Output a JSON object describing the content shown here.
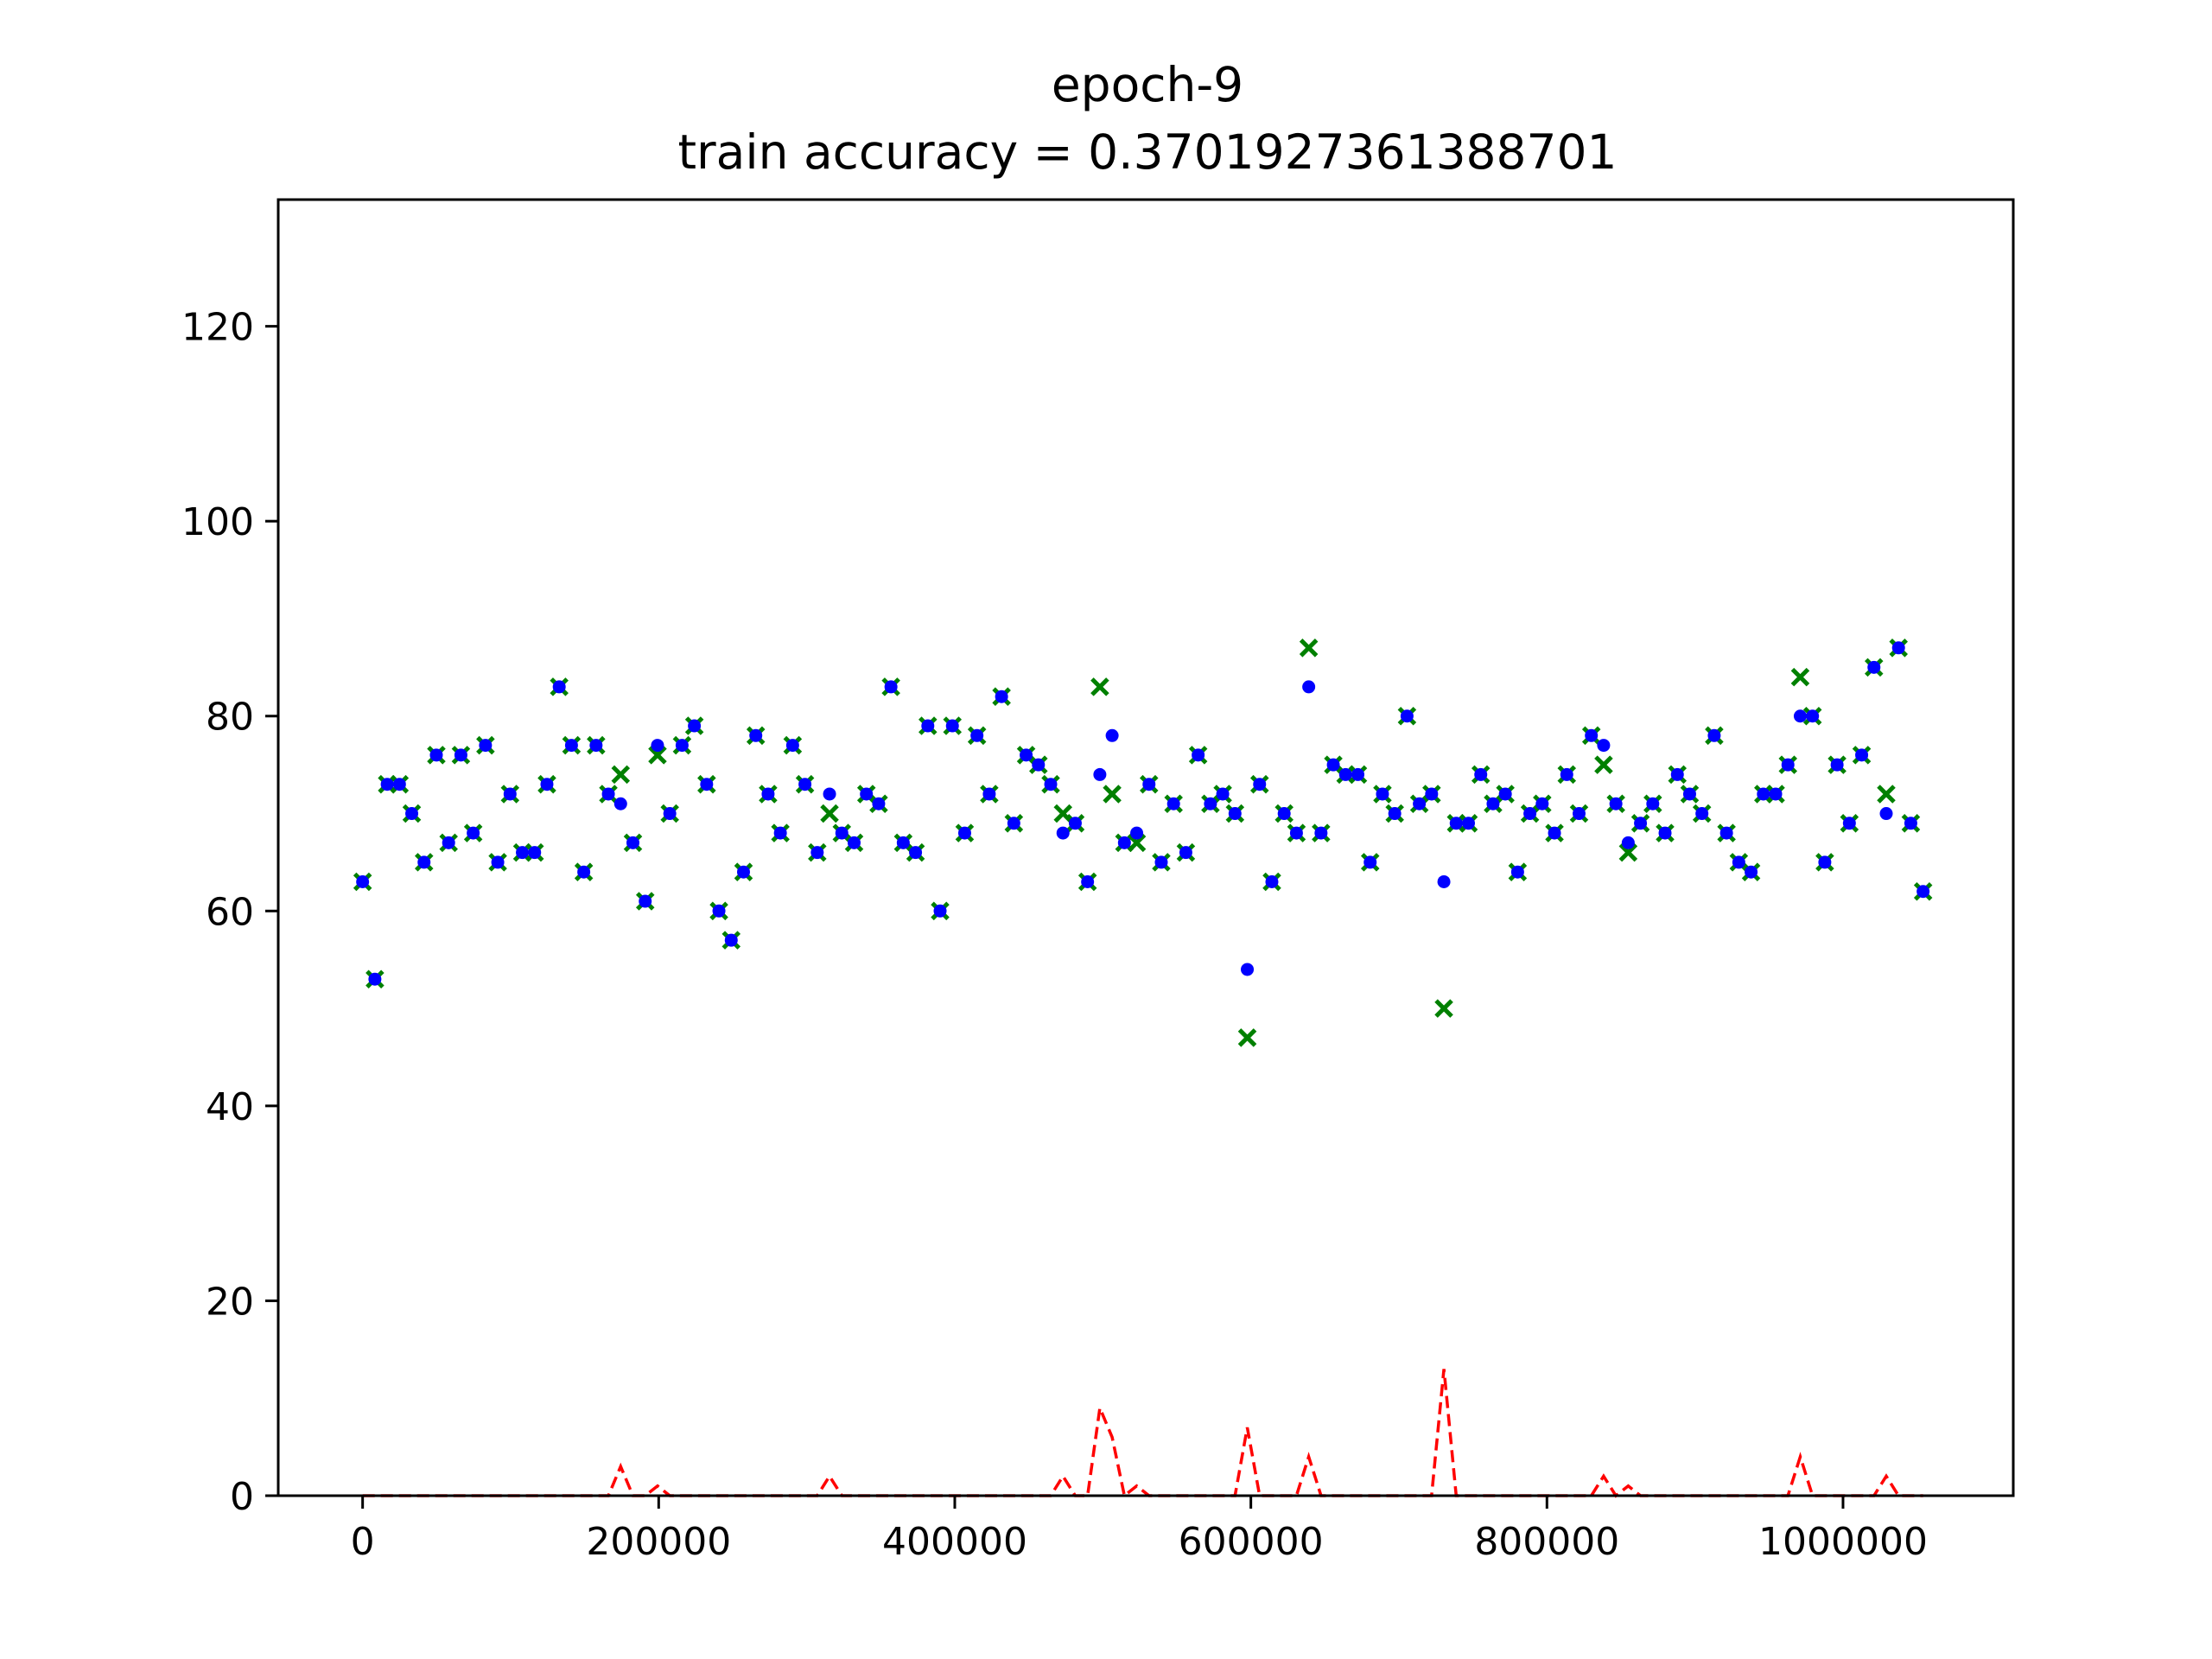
{
  "chart_data": {
    "type": "scatter",
    "title": "epoch-9",
    "subtitle": "train accuracy = 0.3701927361388701",
    "xlabel": "",
    "ylabel": "",
    "xlim": [
      -57000,
      1115000
    ],
    "ylim": [
      0,
      133
    ],
    "x_ticks": [
      0,
      200000,
      400000,
      600000,
      800000,
      1000000
    ],
    "x_tick_labels": [
      "0",
      "200000",
      "400000",
      "600000",
      "800000",
      "1000000"
    ],
    "y_ticks": [
      0,
      20,
      40,
      60,
      80,
      100,
      120
    ],
    "y_tick_labels": [
      "0",
      "20",
      "40",
      "60",
      "80",
      "100",
      "120"
    ],
    "grid": false,
    "colors": {
      "predicted": "#0000ff",
      "actual": "#008000",
      "error": "#ff0000"
    },
    "x": [
      0,
      8300,
      16600,
      24900,
      33200,
      41500,
      49800,
      58100,
      66400,
      74700,
      83000,
      91300,
      99600,
      107900,
      116200,
      124500,
      132800,
      141100,
      149400,
      157700,
      166000,
      174300,
      182600,
      190900,
      199200,
      207500,
      215800,
      224100,
      232400,
      240700,
      249000,
      257300,
      265600,
      273900,
      282200,
      290500,
      298800,
      307100,
      315400,
      323700,
      332000,
      340300,
      348600,
      356900,
      365200,
      373500,
      381800,
      390100,
      398400,
      406700,
      415000,
      423300,
      431600,
      439900,
      448200,
      456500,
      464800,
      473100,
      481400,
      489700,
      498000,
      506300,
      514600,
      522900,
      531200,
      539500,
      547800,
      556100,
      564400,
      572700,
      581000,
      589300,
      597600,
      605900,
      614200,
      622500,
      630800,
      639100,
      647400,
      655700,
      664000,
      672300,
      680600,
      688900,
      697200,
      705500,
      713800,
      722100,
      730400,
      738700,
      747000,
      755300,
      763600,
      771900,
      780200,
      788500,
      796800,
      805100,
      813400,
      821700,
      830000,
      838300,
      846600,
      854900,
      863200,
      871500,
      879800,
      888100,
      896400,
      904700,
      913000,
      921300,
      929600,
      937900,
      946200,
      954500,
      962800,
      971100,
      979400,
      987700,
      996000,
      1004300,
      1012600,
      1020900,
      1029200,
      1037500,
      1045800,
      1054100
    ],
    "series": [
      {
        "marker": "circle",
        "values": [
          63,
          53,
          73,
          73,
          70,
          65,
          76,
          67,
          76,
          68,
          77,
          65,
          72,
          66,
          66,
          73,
          83,
          77,
          64,
          77,
          72,
          71,
          67,
          61,
          77,
          70,
          77,
          79,
          73,
          60,
          57,
          64,
          78,
          72,
          68,
          77,
          73,
          66,
          72,
          68,
          67,
          72,
          71,
          83,
          67,
          66,
          79,
          60,
          79,
          68,
          78,
          72,
          82,
          69,
          76,
          75,
          73,
          68,
          69,
          63,
          74,
          78,
          67,
          68,
          73,
          65,
          71,
          66,
          76,
          71,
          72,
          70,
          54,
          73,
          63,
          70,
          68,
          83,
          68,
          75,
          74,
          74,
          65,
          72,
          70,
          80,
          71,
          72,
          63,
          69,
          69,
          74,
          71,
          72,
          64,
          70,
          71,
          68,
          74,
          70,
          78,
          77,
          71,
          67,
          69,
          71,
          68,
          74,
          72,
          70,
          78,
          68,
          65,
          64,
          72,
          72,
          75,
          80,
          80,
          65,
          75,
          69,
          76,
          85,
          70,
          87,
          69,
          62
        ]
      },
      {
        "marker": "x",
        "values": [
          63,
          53,
          73,
          73,
          70,
          65,
          76,
          67,
          76,
          68,
          77,
          65,
          72,
          66,
          66,
          73,
          83,
          77,
          64,
          77,
          72,
          74,
          67,
          61,
          76,
          70,
          77,
          79,
          73,
          60,
          57,
          64,
          78,
          72,
          68,
          77,
          73,
          66,
          70,
          68,
          67,
          72,
          71,
          83,
          67,
          66,
          79,
          60,
          79,
          68,
          78,
          72,
          82,
          69,
          76,
          75,
          73,
          70,
          69,
          63,
          83,
          72,
          67,
          67,
          73,
          65,
          71,
          66,
          76,
          71,
          72,
          70,
          47,
          73,
          63,
          70,
          68,
          87,
          68,
          75,
          74,
          74,
          65,
          72,
          70,
          80,
          71,
          72,
          50,
          69,
          69,
          74,
          71,
          72,
          64,
          70,
          71,
          68,
          74,
          70,
          78,
          75,
          71,
          66,
          69,
          71,
          68,
          74,
          72,
          70,
          78,
          68,
          65,
          64,
          72,
          72,
          75,
          84,
          80,
          65,
          75,
          69,
          76,
          85,
          72,
          87,
          69,
          62
        ]
      },
      {
        "marker": "dashed-line",
        "values": [
          0,
          0,
          0,
          0,
          0,
          0,
          0,
          0,
          0,
          0,
          0,
          0,
          0,
          0,
          0,
          0,
          0,
          0,
          0,
          0,
          0,
          3,
          0,
          0,
          1,
          0,
          0,
          0,
          0,
          0,
          0,
          0,
          0,
          0,
          0,
          0,
          0,
          0,
          2,
          0,
          0,
          0,
          0,
          0,
          0,
          0,
          0,
          0,
          0,
          0,
          0,
          0,
          0,
          0,
          0,
          0,
          0,
          2,
          0,
          0,
          9,
          6,
          0,
          1,
          0,
          0,
          0,
          0,
          0,
          0,
          0,
          0,
          7,
          0,
          0,
          0,
          0,
          4,
          0,
          0,
          0,
          0,
          0,
          0,
          0,
          0,
          0,
          0,
          13,
          0,
          0,
          0,
          0,
          0,
          0,
          0,
          0,
          0,
          0,
          0,
          0,
          2,
          0,
          1,
          0,
          0,
          0,
          0,
          0,
          0,
          0,
          0,
          0,
          0,
          0,
          0,
          0,
          4,
          0,
          0,
          0,
          0,
          0,
          0,
          2,
          0,
          0,
          0
        ]
      }
    ]
  }
}
